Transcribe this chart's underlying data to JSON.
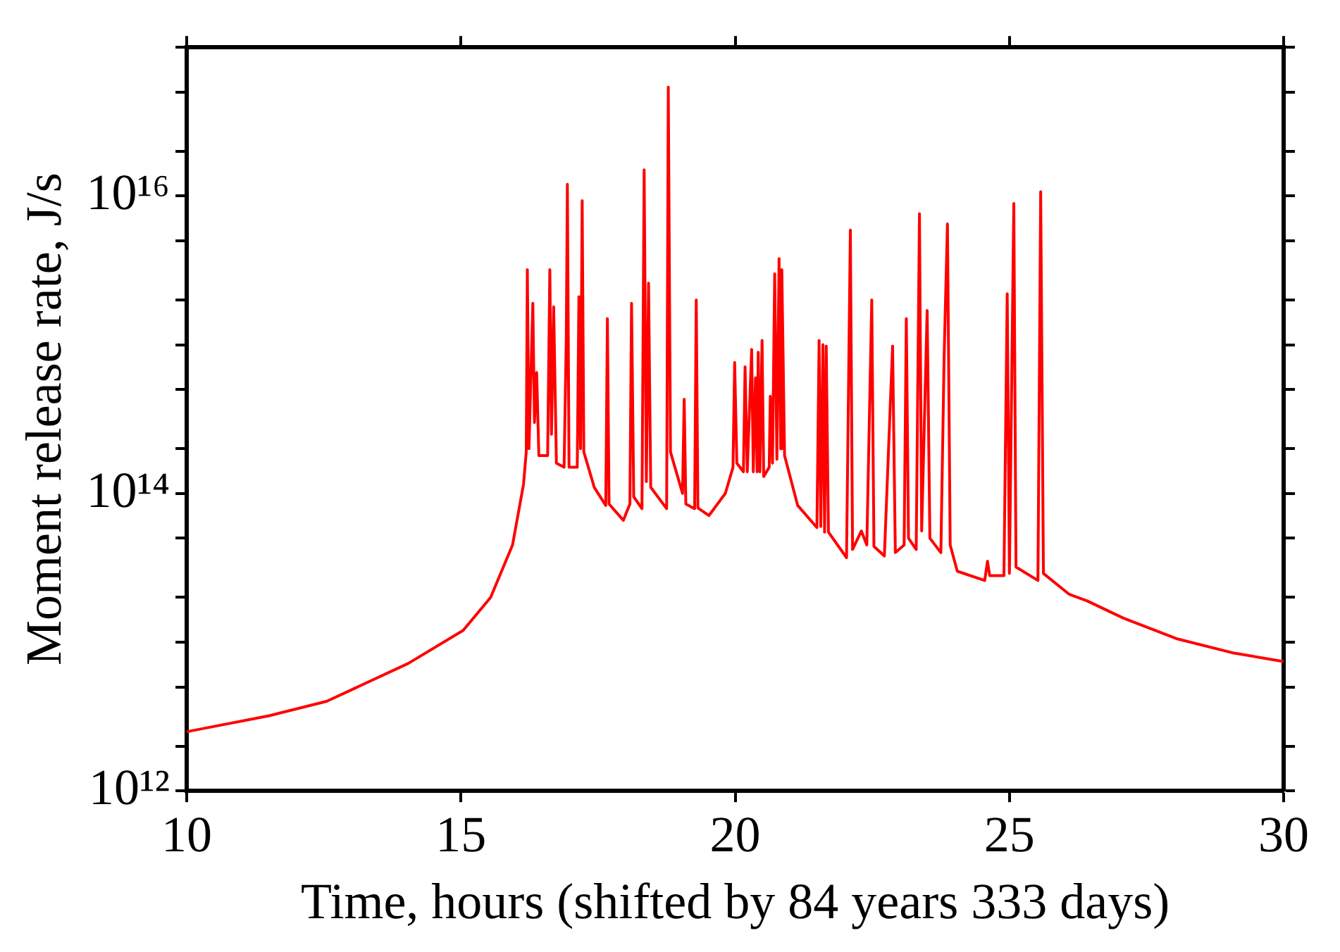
{
  "chart_data": {
    "type": "line",
    "xlabel": "Time, hours (shifted by 84 years 333 days)",
    "ylabel": "Moment release rate, J/s",
    "log": "y",
    "grid": false,
    "marker": "none",
    "line_style": "solid",
    "xlim": [
      10,
      30
    ],
    "xticks": [
      10,
      15,
      20,
      25,
      30
    ],
    "ylim": [
      1000000000000.0,
      1e+17
    ],
    "yticks": [
      {
        "value": 1000000000000.0,
        "label": "10¹²"
      },
      {
        "value": 2000000000000.0,
        "label": null
      },
      {
        "value": 5000000000000.0,
        "label": null
      },
      {
        "value": 10000000000000.0,
        "label": null
      },
      {
        "value": 20000000000000.0,
        "label": null
      },
      {
        "value": 50000000000000.0,
        "label": null
      },
      {
        "value": 100000000000000.0,
        "label": "10¹⁴"
      },
      {
        "value": 200000000000000.0,
        "label": null
      },
      {
        "value": 500000000000000.0,
        "label": null
      },
      {
        "value": 1000000000000000.0,
        "label": null
      },
      {
        "value": 2000000000000000.0,
        "label": null
      },
      {
        "value": 5000000000000000.0,
        "label": null
      },
      {
        "value": 1e+16,
        "label": "10¹⁶"
      },
      {
        "value": 2e+16,
        "label": null
      },
      {
        "value": 5e+16,
        "label": null
      },
      {
        "value": 1e+17,
        "label": null
      }
    ],
    "x": [
      10,
      11.5,
      12.55,
      14.04,
      15.04,
      15.54,
      15.94,
      16.14,
      16.19,
      16.21,
      16.24,
      16.31,
      16.34,
      16.38,
      16.42,
      16.58,
      16.62,
      16.65,
      16.69,
      16.74,
      16.88,
      16.92,
      16.94,
      16.97,
      17.12,
      17.15,
      17.18,
      17.21,
      17.24,
      17.43,
      17.64,
      17.67,
      17.7,
      17.96,
      18.08,
      18.11,
      18.15,
      18.3,
      18.34,
      18.38,
      18.42,
      18.46,
      18.75,
      18.78,
      18.82,
      19.04,
      19.07,
      19.1,
      19.26,
      19.29,
      19.32,
      19.52,
      19.82,
      19.96,
      19.99,
      20.03,
      20.15,
      20.18,
      20.22,
      20.3,
      20.33,
      20.37,
      20.4,
      20.42,
      20.45,
      20.49,
      20.52,
      20.62,
      20.64,
      20.68,
      20.72,
      20.76,
      20.8,
      20.83,
      20.85,
      20.9,
      21.14,
      21.49,
      21.53,
      21.56,
      21.6,
      21.63,
      21.66,
      21.7,
      22.03,
      22.1,
      22.14,
      22.3,
      22.4,
      22.49,
      22.53,
      22.72,
      22.87,
      22.92,
      23.08,
      23.12,
      23.16,
      23.3,
      23.36,
      23.4,
      23.5,
      23.55,
      23.75,
      23.81,
      23.87,
      23.92,
      24.05,
      24.55,
      24.6,
      24.64,
      24.9,
      24.96,
      25,
      25.08,
      25.12,
      25.52,
      25.57,
      25.62,
      26.09,
      26.41,
      27.08,
      28.07,
      29.06,
      30
    ],
    "series": [
      {
        "color": "#ff0000",
        "values": [
          2500000000000.0,
          3200000000000.0,
          4000000000000.0,
          7200000000000.0,
          12000000000000.0,
          20000000000000.0,
          45000000000000.0,
          115000000000000.0,
          190000000000000.0,
          3200000000000000.0,
          200000000000000.0,
          1900000000000000.0,
          300000000000000.0,
          650000000000000.0,
          180000000000000.0,
          180000000000000.0,
          3200000000000000.0,
          250000000000000.0,
          1800000000000000.0,
          160000000000000.0,
          150000000000000.0,
          1100000000000000.0,
          1.2e+16,
          150000000000000.0,
          150000000000000.0,
          2100000000000000.0,
          200000000000000.0,
          9300000000000000.0,
          190000000000000.0,
          110000000000000.0,
          83000000000000.0,
          1500000000000000.0,
          85000000000000.0,
          66000000000000.0,
          85000000000000.0,
          1900000000000000.0,
          95000000000000.0,
          79000000000000.0,
          1.5e+16,
          120000000000000.0,
          2600000000000000.0,
          110000000000000.0,
          79000000000000.0,
          5.4e+16,
          190000000000000.0,
          100000000000000.0,
          430000000000000.0,
          85000000000000.0,
          79000000000000.0,
          2000000000000000.0,
          80000000000000.0,
          71000000000000.0,
          100000000000000.0,
          150000000000000.0,
          760000000000000.0,
          160000000000000.0,
          140000000000000.0,
          710000000000000.0,
          140000000000000.0,
          930000000000000.0,
          140000000000000.0,
          600000000000000.0,
          140000000000000.0,
          890000000000000.0,
          140000000000000.0,
          1070000000000000.0,
          130000000000000.0,
          150000000000000.0,
          450000000000000.0,
          160000000000000.0,
          3000000000000000.0,
          170000000000000.0,
          3800000000000000.0,
          200000000000000.0,
          3200000000000000.0,
          180000000000000.0,
          83000000000000.0,
          59000000000000.0,
          1070000000000000.0,
          60000000000000.0,
          1000000000000000.0,
          55000000000000.0,
          980000000000000.0,
          55000000000000.0,
          37000000000000.0,
          5900000000000000.0,
          42000000000000.0,
          56000000000000.0,
          45000000000000.0,
          2000000000000000.0,
          44000000000000.0,
          38000000000000.0,
          980000000000000.0,
          40000000000000.0,
          45000000000000.0,
          1500000000000000.0,
          50000000000000.0,
          42000000000000.0,
          7600000000000000.0,
          56000000000000.0,
          1700000000000000.0,
          50000000000000.0,
          40000000000000.0,
          850000000000000.0,
          6500000000000000.0,
          45000000000000.0,
          30000000000000.0,
          26000000000000.0,
          35000000000000.0,
          28000000000000.0,
          28000000000000.0,
          2200000000000000.0,
          29000000000000.0,
          8900000000000000.0,
          32000000000000.0,
          26000000000000.0,
          1.07e+16,
          29000000000000.0,
          21000000000000.0,
          19000000000000.0,
          14500000000000.0,
          10500000000000.0,
          8500000000000.0,
          7400000000000.0
        ]
      }
    ]
  }
}
